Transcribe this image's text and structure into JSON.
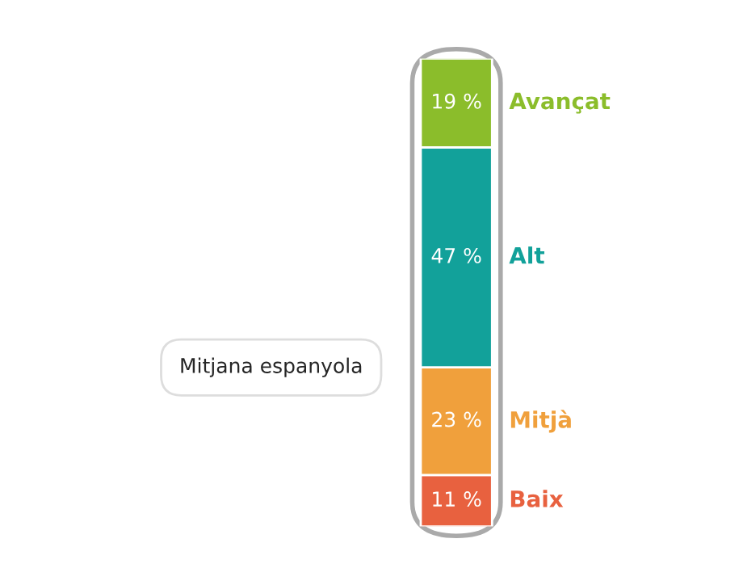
{
  "chart_data": {
    "type": "bar",
    "stacked": true,
    "categories": [
      null
    ],
    "series": [
      {
        "name": "Baix",
        "color": "#e8613f",
        "values": [
          11
        ],
        "value_labels": [
          "11 %"
        ]
      },
      {
        "name": "Mitjà",
        "color": "#f0a03c",
        "values": [
          23
        ],
        "value_labels": [
          "23 %"
        ]
      },
      {
        "name": "Alt",
        "color": "#12a19a",
        "values": [
          47
        ],
        "value_labels": [
          "47 %"
        ]
      },
      {
        "name": "Avançat",
        "color": "#8bbd2b",
        "values": [
          19
        ],
        "value_labels": [
          "19 %"
        ]
      }
    ],
    "annotations": [
      "Mitjana espanyola"
    ],
    "legend": false
  }
}
